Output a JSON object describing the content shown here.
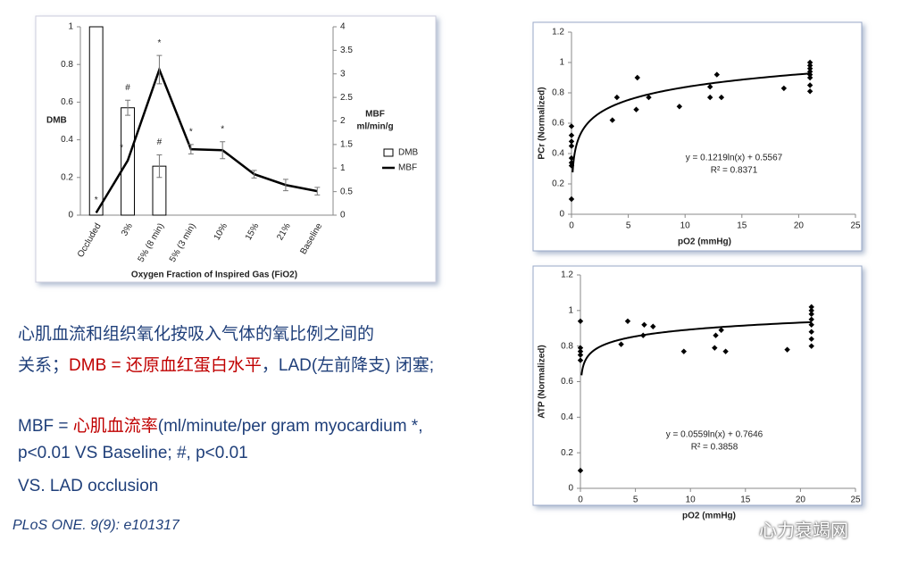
{
  "chart_data": [
    {
      "type": "bar-line",
      "categories": [
        "Occluded",
        "3%",
        "5% (8 min)",
        "5% (3 min)",
        "10%",
        "15%",
        "21%",
        "Baseline"
      ],
      "series": [
        {
          "name": "DMB",
          "type": "bar",
          "color": "#ffffff",
          "values": [
            1,
            0.57,
            0.26,
            null,
            null,
            null,
            null,
            null
          ],
          "errors": [
            null,
            0.04,
            0.06,
            null,
            null,
            null,
            null,
            null
          ]
        },
        {
          "name": "MBF",
          "type": "line",
          "axis": "y2",
          "color": "#000000",
          "values": [
            0.05,
            1.16,
            3.09,
            1.4,
            1.38,
            0.87,
            0.64,
            0.51
          ],
          "errors": [
            null,
            null,
            0.3,
            0.1,
            0.18,
            0.08,
            0.12,
            0.08
          ]
        }
      ],
      "annotations": [
        {
          "text": "*",
          "category": 0,
          "series": 1
        },
        {
          "text": "#",
          "category": 1,
          "series": 0
        },
        {
          "text": "*",
          "category": 1,
          "series": 1
        },
        {
          "text": "*",
          "category": 2,
          "series": 1
        },
        {
          "text": "#",
          "category": 2,
          "series": 0
        },
        {
          "text": "*",
          "category": 3,
          "series": 1
        },
        {
          "text": "*",
          "category": 4,
          "series": 1
        }
      ],
      "ylabel": "DMB",
      "y2label": [
        "MBF",
        "ml/min/g"
      ],
      "xlabel": "Oxygen Fraction of Inspired Gas (FiO2)",
      "ylim": [
        0,
        1
      ],
      "yticks": [
        0,
        0.2,
        0.4,
        0.6,
        0.8,
        1
      ],
      "y2lim": [
        0,
        4
      ],
      "y2ticks": [
        0,
        0.5,
        1,
        1.5,
        2,
        2.5,
        3,
        3.5,
        4
      ]
    },
    {
      "type": "scatter",
      "color": "#000000",
      "x": [
        0,
        0,
        0,
        0,
        0,
        0,
        0,
        0,
        3.6,
        4,
        5.7,
        5.8,
        6.8,
        9.5,
        12.2,
        12.2,
        12.8,
        13.2,
        18.7,
        21,
        21,
        21,
        21,
        21,
        21,
        21,
        21
      ],
      "values": [
        0.1,
        0.32,
        0.34,
        0.37,
        0.45,
        0.48,
        0.52,
        0.58,
        0.62,
        0.77,
        0.69,
        0.9,
        0.77,
        0.71,
        0.77,
        0.84,
        0.92,
        0.77,
        0.83,
        0.81,
        0.85,
        0.9,
        0.92,
        0.94,
        0.96,
        0.98,
        1.0
      ],
      "trendline": {
        "type": "log",
        "slope": 0.1219,
        "intercept": 0.5567,
        "label": "y = 0.1219ln(x) + 0.5567",
        "r2_label": "R² = 0.8371"
      },
      "xlabel": "pO2 (mmHg)",
      "ylabel": "PCr (Normalized)",
      "xlim": [
        0,
        25
      ],
      "xticks": [
        0,
        5,
        10,
        15,
        20,
        25
      ],
      "ylim": [
        0,
        1.2
      ],
      "yticks": [
        0,
        0.2,
        0.4,
        0.6,
        0.8,
        1,
        1.2
      ]
    },
    {
      "type": "scatter",
      "color": "#000000",
      "x": [
        0,
        0,
        0,
        0,
        0,
        0,
        3.7,
        4.3,
        5.7,
        5.8,
        6.6,
        9.4,
        12.2,
        12.3,
        12.8,
        13.2,
        18.8,
        21,
        21,
        21,
        21,
        21,
        21,
        21,
        21
      ],
      "values": [
        0.1,
        0.72,
        0.75,
        0.77,
        0.79,
        0.94,
        0.81,
        0.94,
        0.86,
        0.92,
        0.91,
        0.77,
        0.79,
        0.86,
        0.89,
        0.77,
        0.78,
        0.8,
        0.84,
        0.88,
        0.92,
        0.95,
        0.98,
        1.0,
        1.02
      ],
      "trendline": {
        "type": "log",
        "slope": 0.0559,
        "intercept": 0.7646,
        "label": "y = 0.0559ln(x) + 0.7646",
        "r2_label": "R² = 0.3858"
      },
      "xlabel": "pO2 (mmHg)",
      "ylabel": "ATP (Normalized)",
      "xlim": [
        0,
        25
      ],
      "xticks": [
        0,
        5,
        10,
        15,
        20,
        25
      ],
      "ylim": [
        0,
        1.2
      ],
      "yticks": [
        0,
        0.2,
        0.4,
        0.6,
        0.8,
        1,
        1.2
      ]
    }
  ],
  "caption": [
    [
      {
        "text": "心肌血流和组织氧化按吸入气体的氧比例之间的"
      }
    ],
    [
      {
        "text": "关系；"
      },
      {
        "text": "DMB = 还原血红蛋白水平",
        "highlight": true
      },
      {
        "text": "，LAD(左前降支) 闭塞;"
      }
    ],
    [
      {
        "text": "MBF = "
      },
      {
        "text": "心肌血流率",
        "highlight": true
      },
      {
        "text": "(ml/minute/per gram myocardium *, p<0.01 VS Baseline; #, p<0.01"
      }
    ],
    [
      {
        "text": "VS. LAD occlusion"
      }
    ]
  ],
  "citation": "PLoS ONE. 9(9): e101317",
  "watermark": "心力衰竭网"
}
